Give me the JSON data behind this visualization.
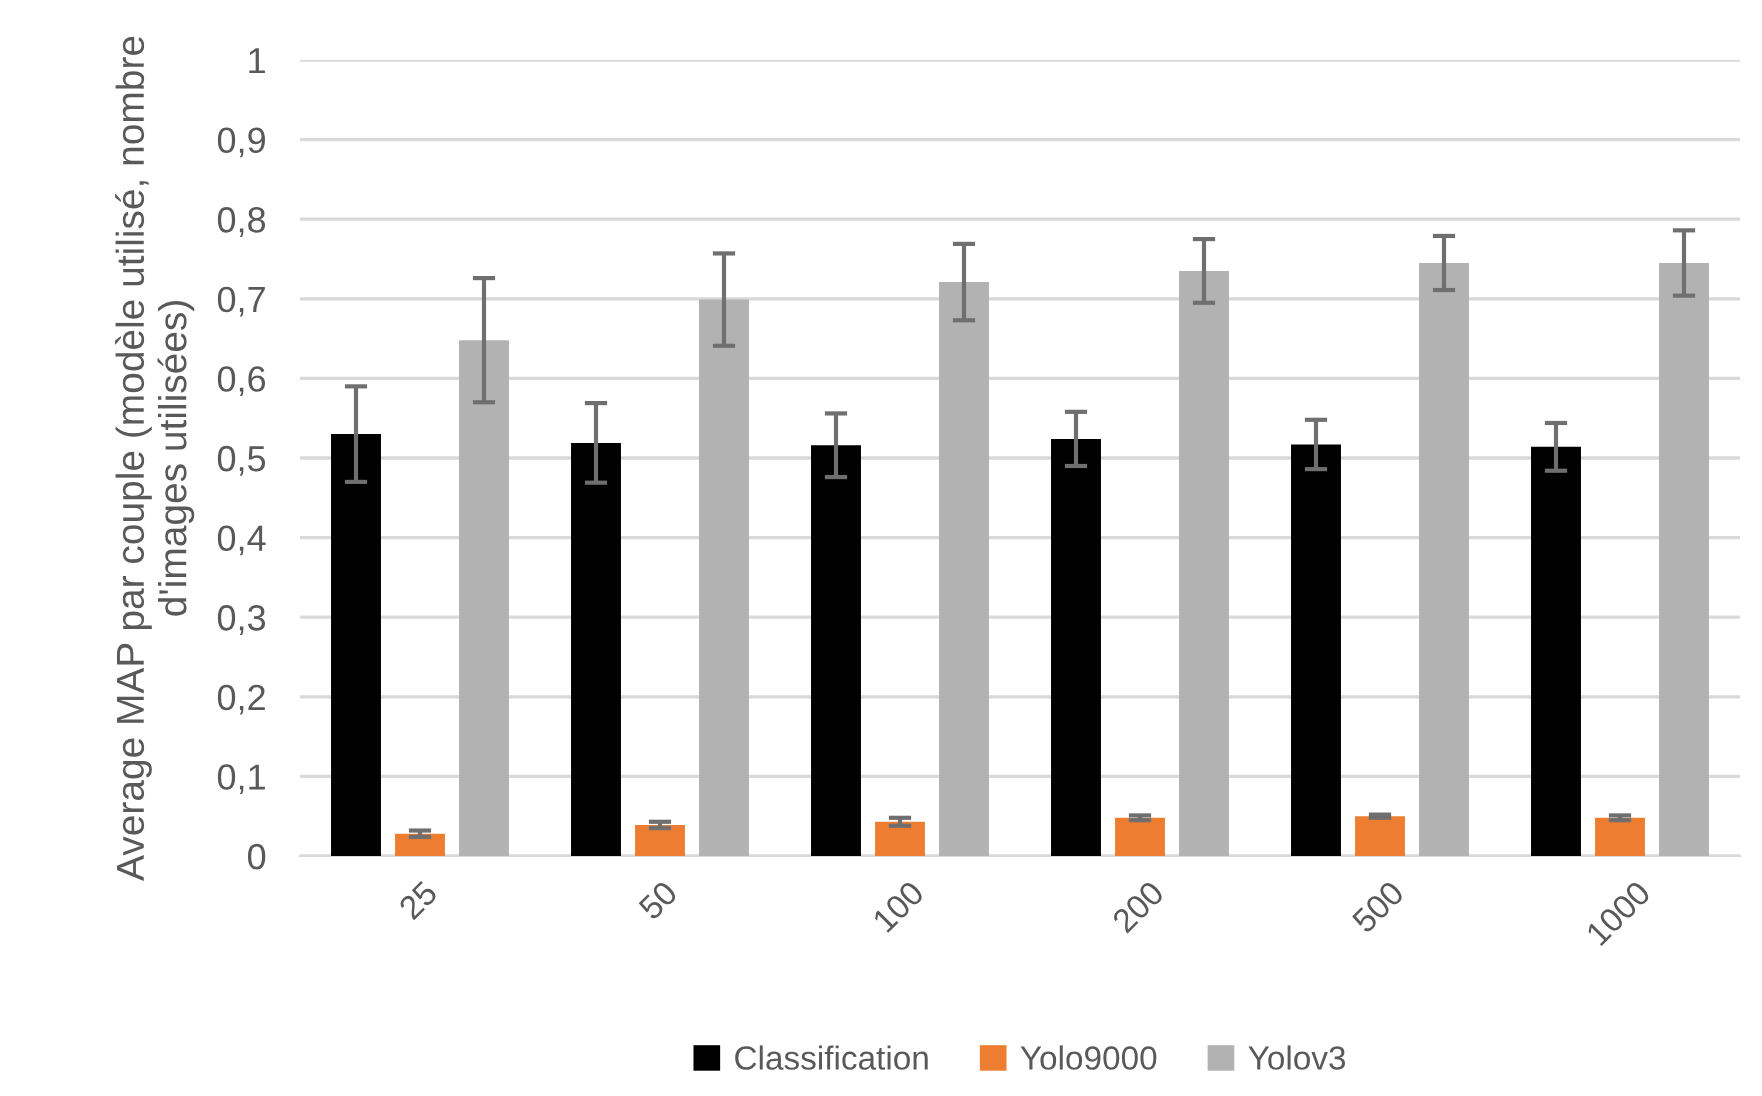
{
  "chart_data": {
    "type": "bar",
    "ylabel": "Average MAP par couple (modèle utilisé, nombre d'images utilisées)",
    "categories": [
      "25",
      "50",
      "100",
      "200",
      "500",
      "1000"
    ],
    "series": [
      {
        "name": "Classification",
        "color": "#000000",
        "values": [
          0.53,
          0.519,
          0.516,
          0.524,
          0.517,
          0.514
        ],
        "errors": [
          0.06,
          0.05,
          0.04,
          0.034,
          0.031,
          0.03
        ]
      },
      {
        "name": "Yolo9000",
        "color": "#ed7d31",
        "values": [
          0.028,
          0.039,
          0.043,
          0.048,
          0.05,
          0.048
        ],
        "errors": [
          0.004,
          0.004,
          0.005,
          0.003,
          0.002,
          0.003
        ]
      },
      {
        "name": "Yolov3",
        "color": "#b2b2b2",
        "values": [
          0.648,
          0.699,
          0.721,
          0.735,
          0.745,
          0.745
        ],
        "errors": [
          0.078,
          0.058,
          0.048,
          0.04,
          0.034,
          0.041
        ]
      }
    ],
    "ylim": [
      0,
      1
    ],
    "yticks": [
      {
        "value": 0,
        "label": "0"
      },
      {
        "value": 0.1,
        "label": "0,1"
      },
      {
        "value": 0.2,
        "label": "0,2"
      },
      {
        "value": 0.3,
        "label": "0,3"
      },
      {
        "value": 0.4,
        "label": "0,4"
      },
      {
        "value": 0.5,
        "label": "0,5"
      },
      {
        "value": 0.6,
        "label": "0,6"
      },
      {
        "value": 0.7,
        "label": "0,7"
      },
      {
        "value": 0.8,
        "label": "0,8"
      },
      {
        "value": 0.9,
        "label": "0,9"
      },
      {
        "value": 1,
        "label": "1"
      }
    ],
    "grid": "y",
    "legend": "bottom"
  }
}
